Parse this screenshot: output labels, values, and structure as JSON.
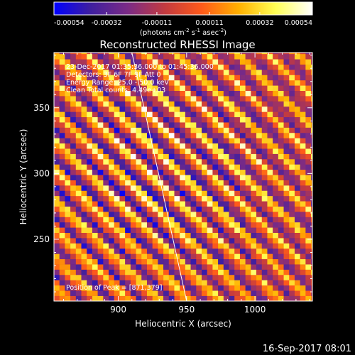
{
  "chart_data": {
    "type": "heatmap",
    "title": "Reconstructed RHESSI Image",
    "xlabel": "Heliocentric X (arcsec)",
    "ylabel": "Heliocentric Y (arcsec)",
    "xlim": [
      853,
      1042
    ],
    "ylim": [
      203,
      392
    ],
    "xticks": [
      900,
      950,
      1000
    ],
    "yticks": [
      250,
      300,
      350
    ],
    "colorbar": {
      "min": -0.00054,
      "max": 0.00054,
      "tick_values": [
        -0.00054,
        -0.00032,
        -0.00011,
        0.00011,
        0.00032,
        0.00054
      ],
      "tick_labels": [
        "-0.00054",
        "-0.00032",
        "-0.00011",
        "0.00011",
        "0.00032",
        "0.00054"
      ],
      "unit_label_parts": [
        "(photons cm",
        "-2",
        " s",
        "-1",
        " asec",
        "-2",
        ")"
      ],
      "colors": [
        "#0000ff",
        "#3f1f9f",
        "#7b2b86",
        "#c23a40",
        "#ff5a1a",
        "#ffb000",
        "#ffff55",
        "#ffffff"
      ]
    },
    "annotations": [
      "23-Dec-2017 01:35:36.000 to 01:45:36.000",
      "Detectors: 3F 6F 7F 9F  Att 0",
      "Energy Range: 25.0 - 50.0 keV",
      "Clean     Total counts: 4.49e+03"
    ],
    "position_text": "Position of Peak = [871,379]",
    "limb_line": {
      "x": [
        910,
        950
      ],
      "y": [
        392,
        203
      ]
    },
    "pattern": {
      "pixel_arcsec": 4,
      "amplitude": 0.00054,
      "description_free": true,
      "wave_vector": [
        0.045,
        0.045
      ],
      "wave_phase": 1.2
    },
    "grid": false
  },
  "footer": {
    "timestamp": "16-Sep-2017 08:01"
  }
}
